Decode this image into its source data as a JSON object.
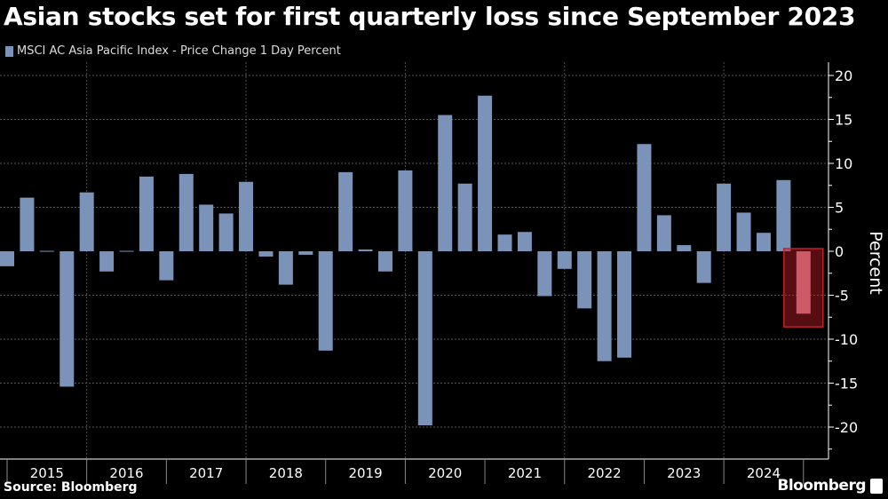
{
  "chart_data": {
    "type": "bar",
    "title": "Asian stocks set for first quarterly loss since September 2023",
    "legend": [
      "MSCI AC Asia Pacific Index - Price Change 1 Day Percent"
    ],
    "legend_placement": "top-left",
    "ylabel": "Percent",
    "y_axis_side": "right",
    "ylim": [
      -23.5,
      21.5
    ],
    "yticks": [
      20,
      15,
      10,
      5,
      0,
      -5,
      -10,
      -15,
      -20
    ],
    "xtick_labels": [
      "2015",
      "2016",
      "2017",
      "2018",
      "2019",
      "2020",
      "2021",
      "2022",
      "2023",
      "2024"
    ],
    "grid": true,
    "bar_color": "#7b93b8",
    "highlight_color": "#c0202a",
    "highlight_bar": "2024-Q4",
    "categories": [
      "2014-Q4",
      "2015-Q1",
      "2015-Q2",
      "2015-Q3",
      "2015-Q4",
      "2016-Q1",
      "2016-Q2",
      "2016-Q3",
      "2016-Q4",
      "2017-Q1",
      "2017-Q2",
      "2017-Q3",
      "2017-Q4",
      "2018-Q1",
      "2018-Q2",
      "2018-Q3",
      "2018-Q4",
      "2019-Q1",
      "2019-Q2",
      "2019-Q3",
      "2019-Q4",
      "2020-Q1",
      "2020-Q2",
      "2020-Q3",
      "2020-Q4",
      "2021-Q1",
      "2021-Q2",
      "2021-Q3",
      "2021-Q4",
      "2022-Q1",
      "2022-Q2",
      "2022-Q3",
      "2022-Q4",
      "2023-Q1",
      "2023-Q2",
      "2023-Q3",
      "2023-Q4",
      "2024-Q1",
      "2024-Q2",
      "2024-Q3",
      "2024-Q4"
    ],
    "values": [
      -1.7,
      6.1,
      0.05,
      -15.4,
      6.7,
      -2.3,
      0.05,
      8.5,
      -3.3,
      8.8,
      5.3,
      4.3,
      7.9,
      -0.6,
      -3.8,
      -0.4,
      -11.3,
      9.0,
      0.2,
      -2.3,
      9.2,
      -19.8,
      15.5,
      7.7,
      17.7,
      1.9,
      2.2,
      -5.1,
      -2.0,
      -6.5,
      -12.5,
      -12.1,
      12.2,
      4.1,
      0.7,
      -3.6,
      7.7,
      4.4,
      2.1,
      8.1,
      -7.1
    ]
  },
  "footer": {
    "source": "Source: Bloomberg",
    "brand": "Bloomberg"
  }
}
